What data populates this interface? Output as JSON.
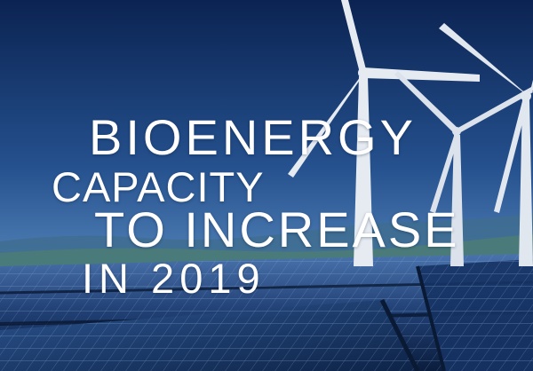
{
  "headline": {
    "line1": "BIOENERGY",
    "line2": "CAPACITY",
    "line3": "TO  INCREASE",
    "line4": "IN  2019"
  },
  "colors": {
    "sky_top": "#0b2352",
    "sky_bottom": "#5f8fc2",
    "panel_dark": "#0b1d3d",
    "panel_light": "#3f6aa8",
    "turbine": "#e6ebf2",
    "text": "#ffffff"
  }
}
